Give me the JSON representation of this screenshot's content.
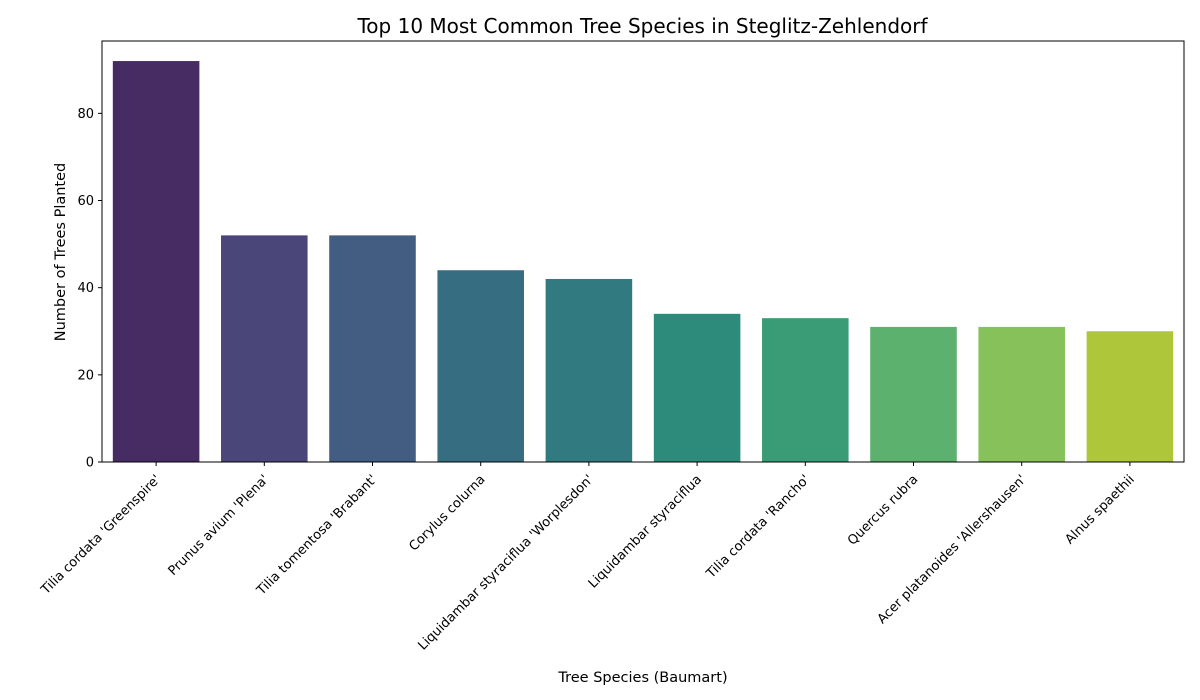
{
  "chart_data": {
    "type": "bar",
    "title": "Top 10 Most Common Tree Species in Steglitz-Zehlendorf",
    "xlabel": "Tree Species (Baumart)",
    "ylabel": "Number of Trees Planted",
    "categories": [
      "Tilia cordata 'Greenspire'",
      "Prunus avium 'Plena'",
      "Tilia tomentosa 'Brabant'",
      "Corylus colurna",
      "Liquidambar styraciflua 'Worplesdon'",
      "Liquidambar styraciflua",
      "Tilia cordata 'Rancho'",
      "Quercus rubra",
      "Acer platanoides 'Allershausen'",
      "Alnus spaethii"
    ],
    "values": [
      92,
      52,
      52,
      44,
      42,
      34,
      33,
      31,
      31,
      30
    ],
    "colors": [
      "#472c63",
      "#4a4679",
      "#425c82",
      "#366d80",
      "#317b80",
      "#2d8b7b",
      "#3a9c76",
      "#5bb16d",
      "#86c15a",
      "#aec63a"
    ],
    "ylim": [
      0,
      96.6
    ],
    "yticks": [
      0,
      20,
      40,
      60,
      80
    ],
    "grid": false,
    "legend": "none"
  }
}
